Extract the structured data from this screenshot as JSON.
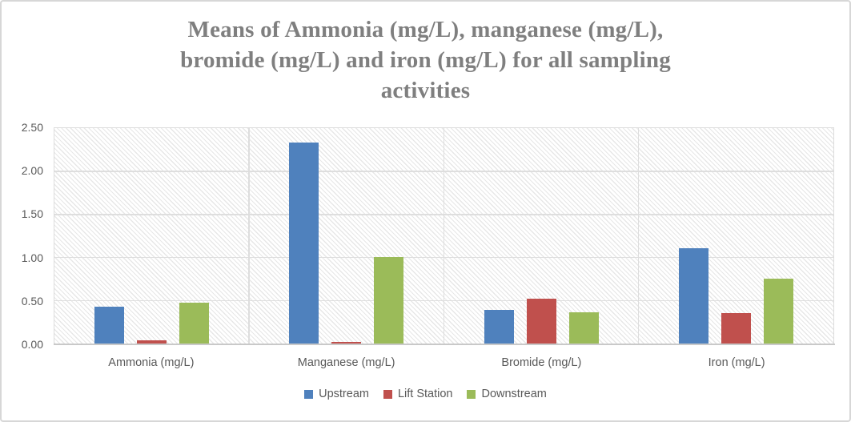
{
  "chart_data": {
    "type": "bar",
    "title": "Means of Ammonia (mg/L), manganese (mg/L),\nbromide (mg/L) and iron (mg/L) for all sampling\nactivities",
    "categories": [
      "Ammonia (mg/L)",
      "Manganese (mg/L)",
      "Bromide (mg/L)",
      "Iron (mg/L)"
    ],
    "series": [
      {
        "name": "Upstream",
        "color": "#4F81BD",
        "values": [
          0.43,
          2.33,
          0.39,
          1.11
        ]
      },
      {
        "name": "Lift Station",
        "color": "#C0504D",
        "values": [
          0.04,
          0.02,
          0.52,
          0.35
        ]
      },
      {
        "name": "Downstream",
        "color": "#9BBB59",
        "values": [
          0.47,
          1.0,
          0.36,
          0.75
        ]
      }
    ],
    "xlabel": "",
    "ylabel": "",
    "ylim": [
      0,
      2.5
    ],
    "yticks": [
      "0.00",
      "0.50",
      "1.00",
      "1.50",
      "2.00",
      "2.50"
    ],
    "grid": true,
    "legend_position": "bottom",
    "plot_background": "light-downward-diagonal-hatch"
  },
  "colors": {
    "title_text": "#7F7F7F",
    "axis_text": "#595959",
    "gridline": "#DEDEDE",
    "chart_border": "#D7D7D7"
  }
}
